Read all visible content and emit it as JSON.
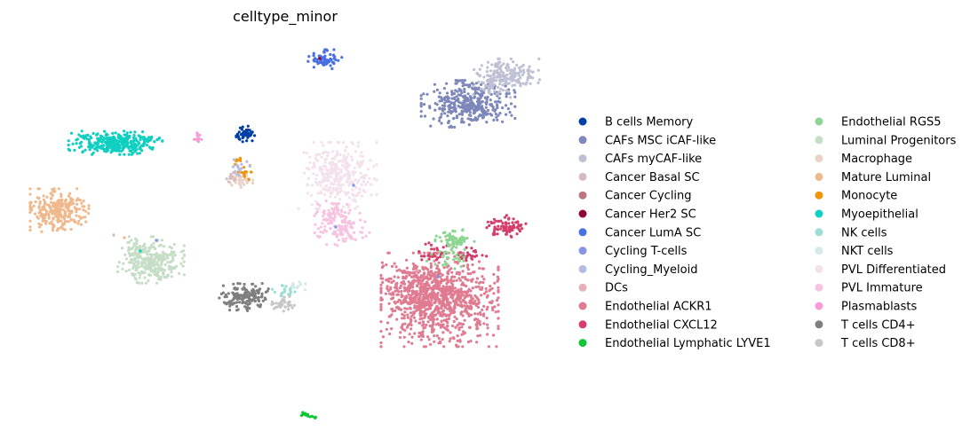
{
  "chart_data": {
    "type": "scatter",
    "title": "celltype_minor",
    "xlabel": "",
    "ylabel": "",
    "grid": false,
    "axes_visible": false,
    "legend_placement": "right",
    "legend_columns": 2,
    "series": [
      {
        "name": "B cells Memory",
        "color": "#023fa5"
      },
      {
        "name": "CAFs MSC iCAF-like",
        "color": "#7d87b9"
      },
      {
        "name": "CAFs myCAF-like",
        "color": "#bec1d4"
      },
      {
        "name": "Cancer Basal SC",
        "color": "#d6bcc0"
      },
      {
        "name": "Cancer Cycling",
        "color": "#bb7784"
      },
      {
        "name": "Cancer Her2 SC",
        "color": "#8e063b"
      },
      {
        "name": "Cancer LumA SC",
        "color": "#4a6fe3"
      },
      {
        "name": "Cycling T-cells",
        "color": "#8595e1"
      },
      {
        "name": "Cycling_Myeloid",
        "color": "#b5bbe3"
      },
      {
        "name": "DCs",
        "color": "#e6afb9"
      },
      {
        "name": "Endothelial ACKR1",
        "color": "#e07b91"
      },
      {
        "name": "Endothelial CXCL12",
        "color": "#d33f6a"
      },
      {
        "name": "Endothelial Lymphatic LYVE1",
        "color": "#11c638"
      },
      {
        "name": "Endothelial RGS5",
        "color": "#8dd593"
      },
      {
        "name": "Luminal Progenitors",
        "color": "#c6dec7"
      },
      {
        "name": "Macrophage",
        "color": "#ead3c6"
      },
      {
        "name": "Mature Luminal",
        "color": "#f0b98d"
      },
      {
        "name": "Monocyte",
        "color": "#ef9708"
      },
      {
        "name": "Myoepithelial",
        "color": "#0fcfc0"
      },
      {
        "name": "NK cells",
        "color": "#9cded6"
      },
      {
        "name": "NKT cells",
        "color": "#d5eae7"
      },
      {
        "name": "PVL Differentiated",
        "color": "#f3e1eb"
      },
      {
        "name": "PVL Immature",
        "color": "#f6c4e1"
      },
      {
        "name": "Plasmablasts",
        "color": "#f79cd4"
      },
      {
        "name": "T cells CD4+",
        "color": "#7f7f7f"
      },
      {
        "name": "T cells CD8+",
        "color": "#c7c7c7"
      }
    ]
  }
}
